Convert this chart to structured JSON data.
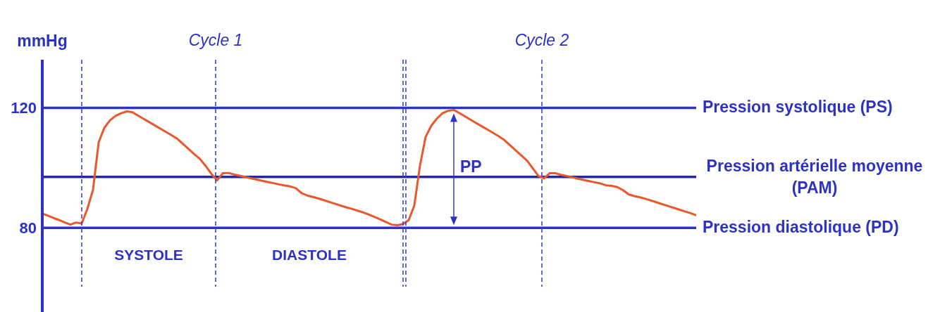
{
  "chart_data": {
    "type": "line",
    "ylabel": "mmHg",
    "categories": [
      null,
      null,
      null,
      null,
      null,
      null,
      null,
      null,
      null,
      null,
      null,
      null,
      null,
      null,
      null,
      null,
      null,
      null,
      null,
      null,
      null,
      null,
      null,
      null,
      null,
      null,
      null,
      null,
      null,
      null,
      null,
      null,
      null,
      null,
      null,
      null,
      null,
      null,
      null,
      null,
      null,
      null,
      null,
      null,
      null,
      null,
      null,
      null,
      null,
      null,
      null,
      null,
      null,
      null,
      null,
      null,
      null,
      null,
      null,
      null,
      null,
      null,
      null,
      null,
      null,
      null,
      null,
      null,
      null,
      null,
      null,
      null,
      null,
      null,
      null,
      null,
      null,
      null,
      null,
      null,
      null,
      null,
      null,
      null,
      null,
      null,
      null,
      null,
      null,
      null,
      null,
      null,
      null,
      null,
      null,
      null,
      null,
      null,
      null,
      null,
      null,
      null,
      null,
      null,
      null,
      null,
      null,
      null,
      null,
      null,
      null,
      null,
      null,
      null,
      null,
      null,
      null
    ],
    "series": [
      {
        "color": "#e9582c",
        "values": [
          84.8,
          84.1,
          83.3,
          82.6,
          81.8,
          81.1,
          81.8,
          81.5,
          86.4,
          92.7,
          108.5,
          113.3,
          115.8,
          117.3,
          118.2,
          118.8,
          118.5,
          117.4,
          116.3,
          115.2,
          114.1,
          113,
          111.9,
          110.8,
          109.6,
          107.9,
          106.2,
          104.5,
          102.9,
          100.6,
          98,
          95.8,
          98.2,
          98.3,
          97.8,
          97.4,
          97,
          96.5,
          96.1,
          95.7,
          95.3,
          94.9,
          94.5,
          94.1,
          93.8,
          93.2,
          91.6,
          90.8,
          90.3,
          89.8,
          89.2,
          88.6,
          88,
          87.4,
          86.8,
          86.3,
          85.7,
          85.1,
          84.4,
          83.6,
          82.8,
          81.9,
          81.1,
          80.9,
          81.3,
          82.6,
          87.5,
          100.8,
          110.3,
          114,
          116.4,
          118.2,
          119,
          119.3,
          118.2,
          117.1,
          116,
          114.9,
          113.8,
          112.7,
          111.6,
          110.5,
          109.2,
          107.5,
          105.8,
          104.1,
          102.4,
          99.9,
          97.3,
          96.5,
          98.2,
          98.2,
          97.7,
          97.3,
          96.9,
          96.4,
          96,
          95.6,
          95.2,
          94.8,
          94.2,
          94,
          93.6,
          92.6,
          91.2,
          90.6,
          90.2,
          89.7,
          89.1,
          88.5,
          87.9,
          87.3,
          86.7,
          86.1,
          85.5,
          84.9,
          84.2
        ]
      }
    ],
    "ylim": [
      52,
      136
    ],
    "yticks": [
      80,
      120
    ],
    "tick_labels": "y",
    "grid": "y",
    "marker": "none",
    "line_style": "solid",
    "ref_lines": [
      {
        "axis": "y",
        "value": 97,
        "label": "Pression artérielle moyenne (PAM)",
        "color": "#232a9e",
        "line_style": "solid"
      }
    ],
    "annotations": [
      "Cycle 1",
      "Cycle 2",
      "SYSTOLE",
      "DIASTOLE",
      "Pression systolique (PS)",
      "Pression diastolique (PD)",
      "PP"
    ]
  }
}
